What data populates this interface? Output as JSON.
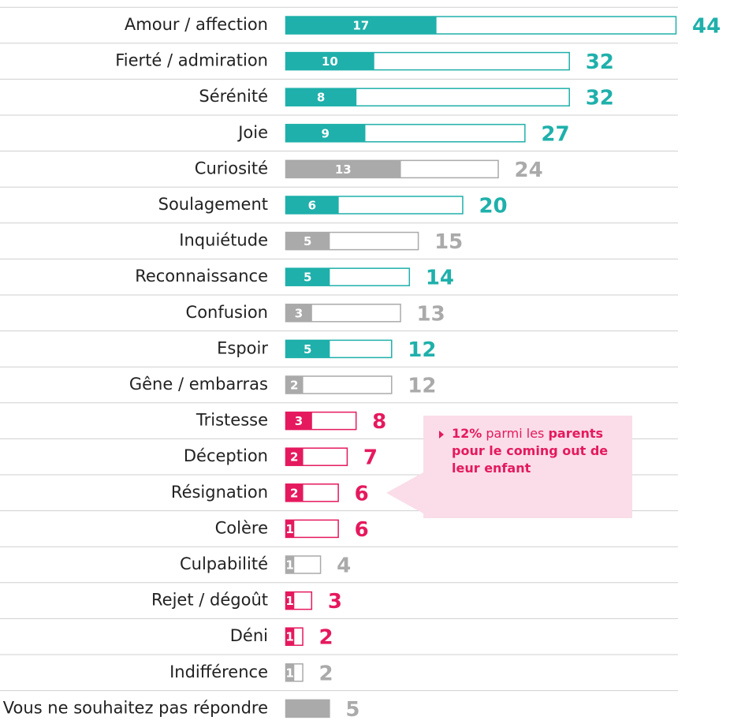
{
  "chart_data": {
    "type": "bar",
    "categories": [
      "Amour / affection",
      "Fierté / admiration",
      "Sérénité",
      "Joie",
      "Curiosité",
      "Soulagement",
      "Inquiétude",
      "Reconnaissance",
      "Confusion",
      "Espoir",
      "Gêne / embarras",
      "Tristesse",
      "Déception",
      "Résignation",
      "Colère",
      "Culpabilité",
      "Rejet / dégoût",
      "Déni",
      "Indifférence",
      "Vous ne souhaitez pas répondre"
    ],
    "series": [
      {
        "values": [
          17,
          10,
          8,
          9,
          13,
          6,
          5,
          5,
          3,
          5,
          2,
          3,
          2,
          2,
          1,
          1,
          1,
          1,
          1,
          null
        ]
      },
      {
        "values": [
          44,
          32,
          32,
          27,
          24,
          20,
          15,
          14,
          13,
          12,
          12,
          8,
          7,
          6,
          6,
          4,
          3,
          2,
          2,
          5
        ]
      }
    ],
    "colors": [
      "#1fb0ab",
      "#1fb0ab",
      "#1fb0ab",
      "#1fb0ab",
      "#aaaaaa",
      "#1fb0ab",
      "#aaaaaa",
      "#1fb0ab",
      "#aaaaaa",
      "#1fb0ab",
      "#aaaaaa",
      "#e5195e",
      "#e5195e",
      "#e5195e",
      "#e5195e",
      "#aaaaaa",
      "#e5195e",
      "#e5195e",
      "#aaaaaa",
      "#aaaaaa"
    ],
    "xlim": [
      0,
      44
    ],
    "annotation": {
      "highlight": "12%",
      "text": " parmi les ",
      "bold": "parents pour le coming out de leur enfant"
    }
  }
}
